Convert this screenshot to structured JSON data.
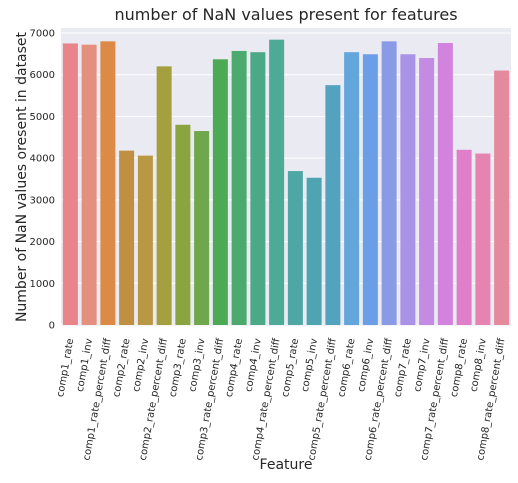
{
  "chart_data": {
    "type": "bar",
    "title": "number of NaN values present for features",
    "xlabel": "Feature",
    "ylabel": "Number of NaN values oresent in dataset",
    "ylim": [
      0,
      7000
    ],
    "yticks": [
      0,
      1000,
      2000,
      3000,
      4000,
      5000,
      6000,
      7000
    ],
    "grid": true,
    "categories": [
      "comp1_rate",
      "comp1_inv",
      "comp1_rate_percent_diff",
      "comp2_rate",
      "comp2_inv",
      "comp2_rate_percent_diff",
      "comp3_rate",
      "comp3_inv",
      "comp3_rate_percent_diff",
      "comp4_rate",
      "comp4_inv",
      "comp4_rate_percent_diff",
      "comp5_rate",
      "comp5_inv",
      "comp5_rate_percent_diff",
      "comp6_rate",
      "comp6_inv",
      "comp6_rate_percent_diff",
      "comp7_rate",
      "comp7_inv",
      "comp7_rate_percent_diff",
      "comp8_rate",
      "comp8_inv",
      "comp8_rate_percent_diff"
    ],
    "values": [
      6750,
      6720,
      6800,
      4180,
      4060,
      6200,
      4800,
      4650,
      6370,
      6570,
      6540,
      6840,
      3690,
      3530,
      5750,
      6540,
      6490,
      6800,
      6490,
      6400,
      6760,
      4200,
      4110,
      6100
    ],
    "colors": [
      "#e8848a",
      "#e5907e",
      "#dc8a46",
      "#bf8f42",
      "#b99843",
      "#a5a03f",
      "#8aa43f",
      "#6fa74c",
      "#4caa54",
      "#4caa6e",
      "#4ca985",
      "#4caa97",
      "#4ea7a5",
      "#4fa4b1",
      "#53a2be",
      "#63a6dc",
      "#6a9ee6",
      "#8a9be6",
      "#aa92e6",
      "#c38be1",
      "#d283dd",
      "#e07fc9",
      "#e584b0",
      "#e58a9c"
    ]
  }
}
